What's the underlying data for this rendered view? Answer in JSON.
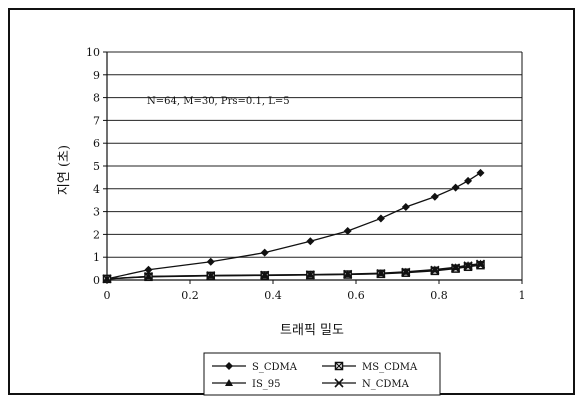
{
  "chart_data": {
    "type": "line",
    "title": "",
    "xlabel": "트래픽 밀도",
    "ylabel": "지연 (초)",
    "xlim": [
      0,
      1
    ],
    "ylim": [
      0,
      10
    ],
    "x_ticks": [
      "0",
      "0.2",
      "0.4",
      "0.6",
      "0.8",
      "1"
    ],
    "y_ticks": [
      "0",
      "1",
      "2",
      "3",
      "4",
      "5",
      "6",
      "7",
      "8",
      "9",
      "10"
    ],
    "grid": "horizontal",
    "legend_position": "bottom",
    "annotation": "N=64, M=30, Prs=0.1, L=5",
    "series": [
      {
        "name": "S_CDMA",
        "marker": "diamond",
        "x": [
          0,
          0.1,
          0.25,
          0.38,
          0.49,
          0.58,
          0.66,
          0.72,
          0.79,
          0.84,
          0.87,
          0.9
        ],
        "values": [
          0.05,
          0.45,
          0.8,
          1.2,
          1.7,
          2.15,
          2.7,
          3.2,
          3.65,
          4.05,
          4.35,
          4.7
        ]
      },
      {
        "name": "MS_CDMA",
        "marker": "square-x",
        "x": [
          0,
          0.1,
          0.25,
          0.38,
          0.49,
          0.58,
          0.66,
          0.72,
          0.79,
          0.84,
          0.87,
          0.9
        ],
        "values": [
          0.05,
          0.14,
          0.18,
          0.2,
          0.22,
          0.24,
          0.27,
          0.32,
          0.4,
          0.5,
          0.58,
          0.65
        ]
      },
      {
        "name": "IS_95",
        "marker": "triangle",
        "x": [
          0,
          0.1,
          0.25,
          0.38,
          0.49,
          0.58,
          0.66,
          0.72,
          0.79,
          0.84,
          0.87,
          0.9
        ],
        "values": [
          0.05,
          0.16,
          0.2,
          0.22,
          0.24,
          0.26,
          0.3,
          0.36,
          0.46,
          0.56,
          0.65,
          0.72
        ]
      },
      {
        "name": "N_CDMA",
        "marker": "x",
        "x": [
          0,
          0.1,
          0.25,
          0.38,
          0.49,
          0.58,
          0.66,
          0.72,
          0.79,
          0.84,
          0.87,
          0.9
        ],
        "values": [
          0.05,
          0.15,
          0.19,
          0.21,
          0.23,
          0.25,
          0.28,
          0.34,
          0.43,
          0.53,
          0.62,
          0.7
        ]
      }
    ]
  }
}
